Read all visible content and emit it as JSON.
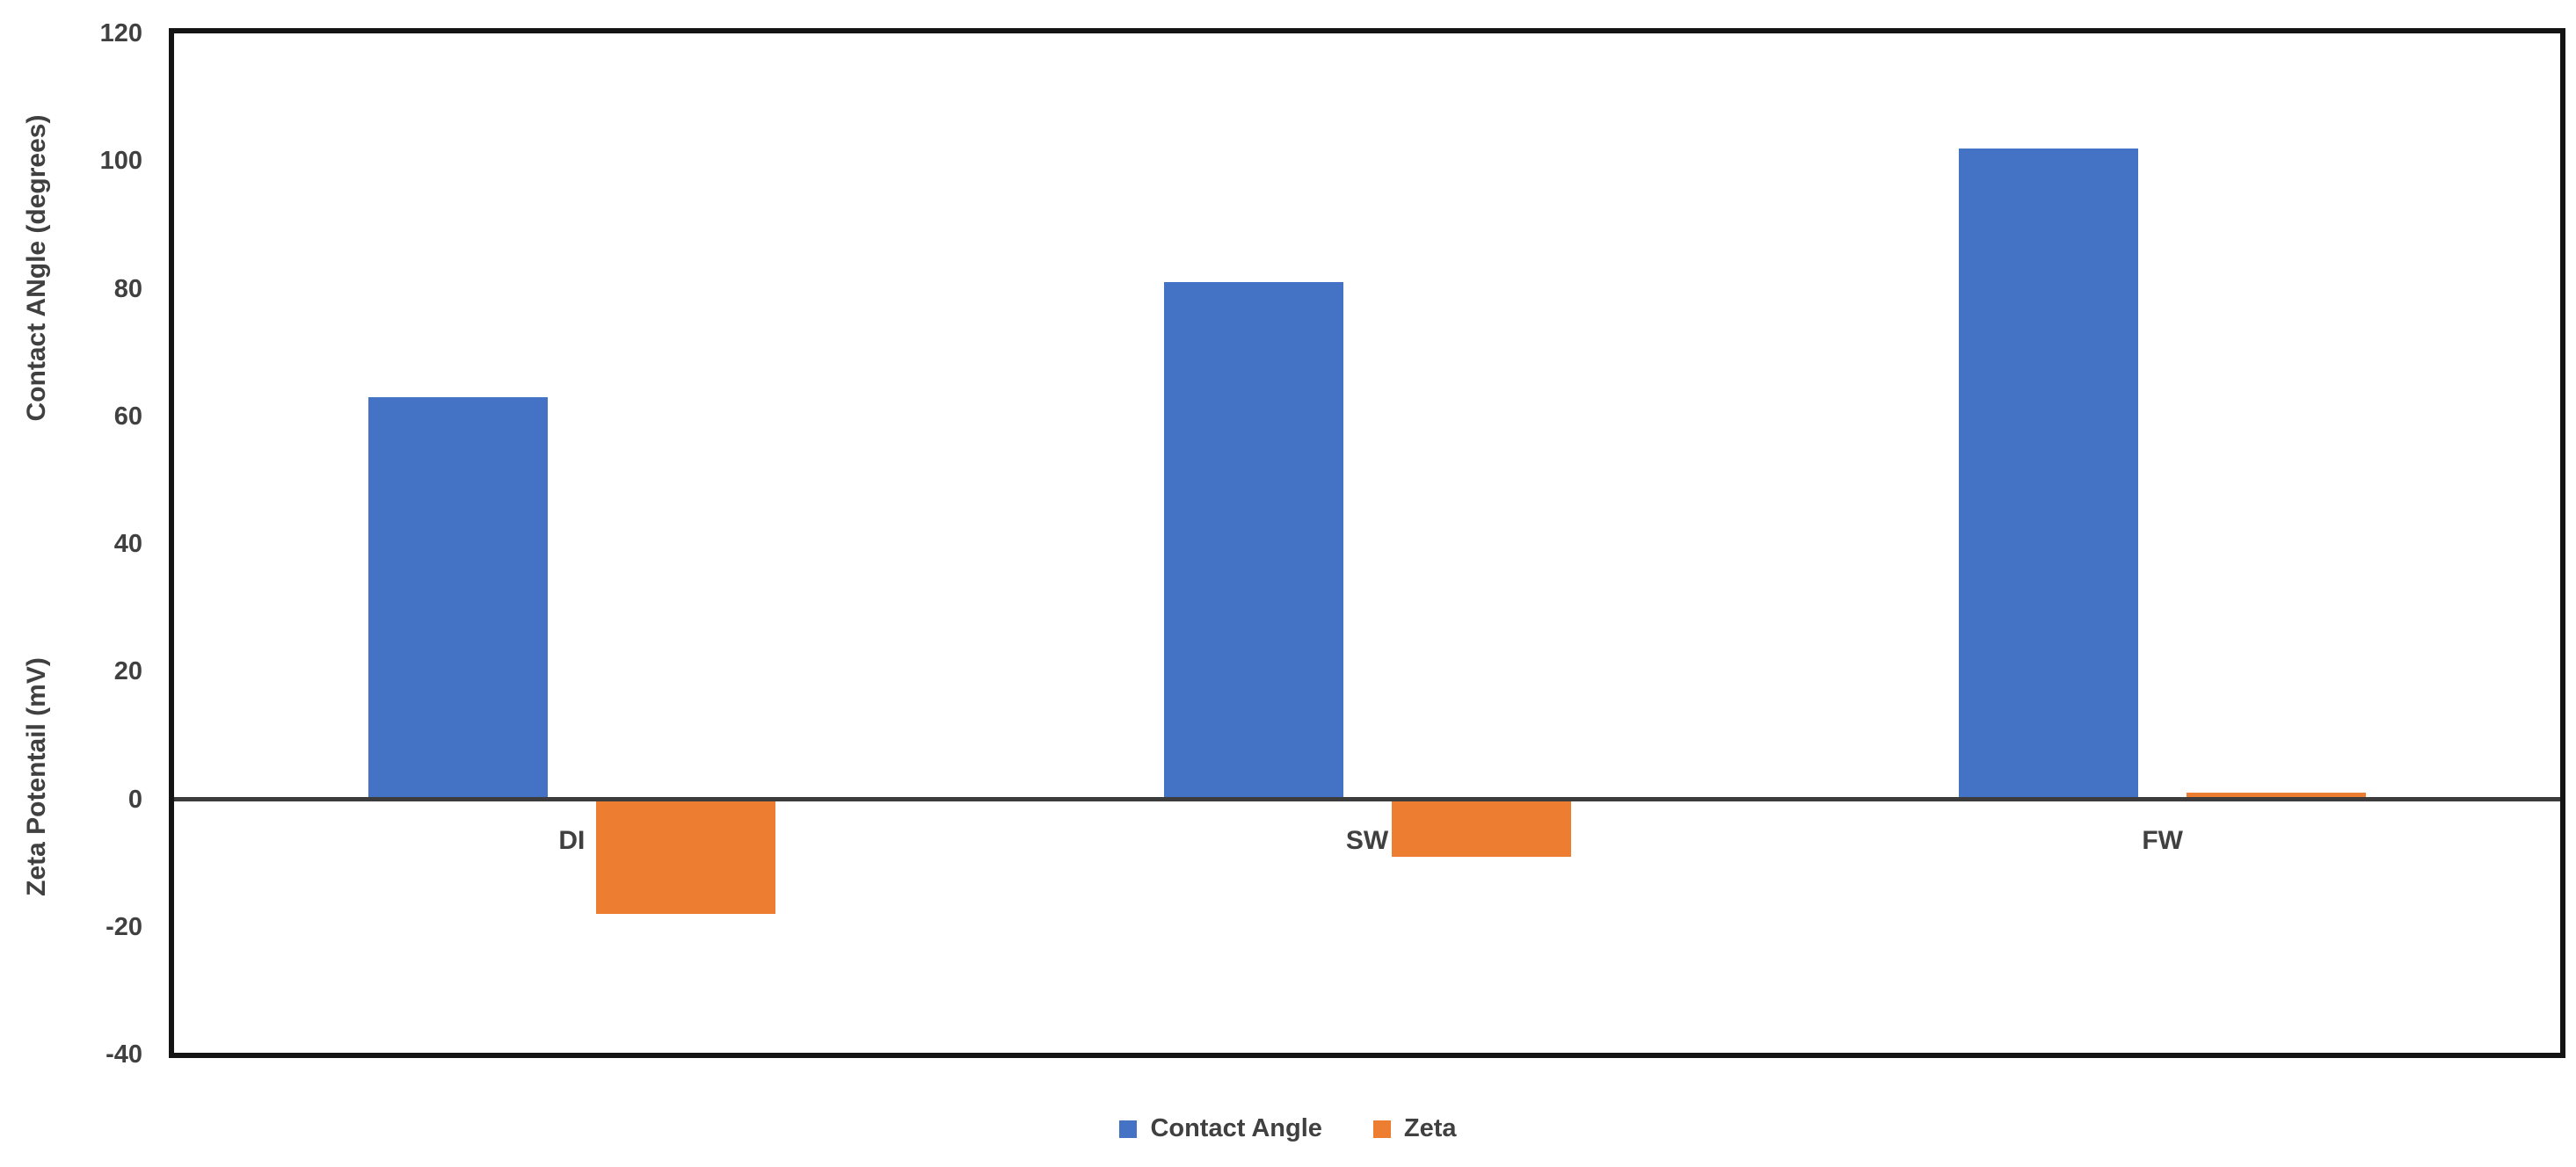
{
  "chart_data": {
    "type": "bar",
    "categories": [
      "DI",
      "SW",
      "FW"
    ],
    "series": [
      {
        "name": "Contact Angle",
        "color": "#4472C4",
        "values": [
          63,
          81,
          102
        ]
      },
      {
        "name": "Zeta",
        "color": "#ED7D31",
        "values": [
          -18,
          -9,
          1
        ]
      }
    ],
    "title": "",
    "ylabel_top": "Contact ANgle (degrees)",
    "ylabel_bottom": "Zeta Potentail (mV)",
    "yticks": [
      120,
      100,
      80,
      60,
      40,
      20,
      0,
      -20,
      -40
    ],
    "ylim": [
      -40,
      120
    ],
    "grid": false,
    "legend_position": "bottom",
    "axis_color": "#141414",
    "zero_line_color": "#3c3c3c",
    "text_color": "#404040"
  }
}
